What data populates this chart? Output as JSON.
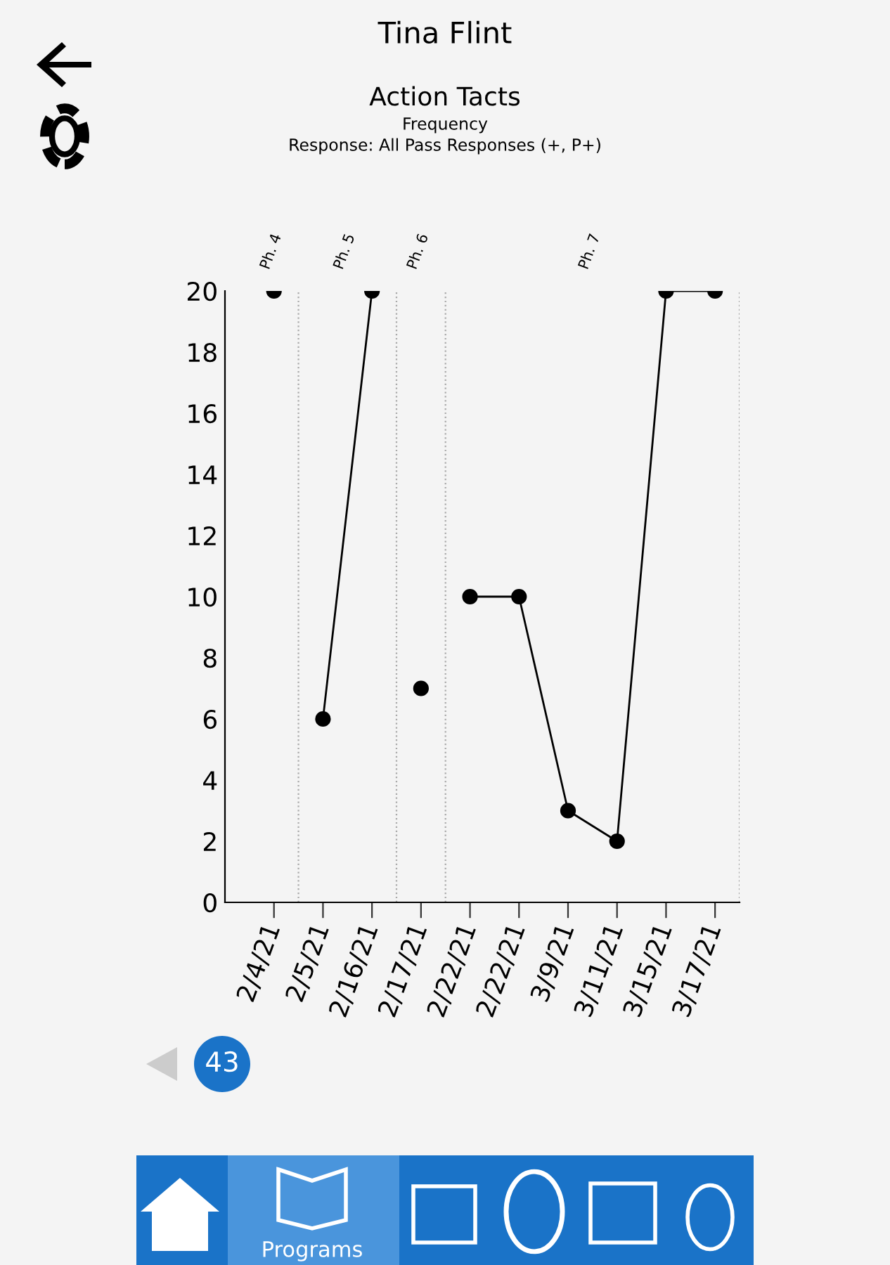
{
  "chart_data": {
    "type": "line",
    "title": "Tina Flint",
    "subtitle": "Action Tacts",
    "categories": [
      "2/4/21",
      "2/5/21",
      "2/16/21",
      "2/17/21",
      "2/22/21",
      "2/22/21",
      "3/9/21",
      "3/11/21",
      "3/15/21",
      "3/17/21"
    ],
    "series": [
      {
        "color": "#000000",
        "values": [
          20,
          null,
          null,
          null,
          null,
          null,
          null,
          null,
          null,
          null
        ]
      },
      {
        "color": "#000000",
        "values": [
          null,
          6,
          20,
          null,
          null,
          null,
          null,
          null,
          null,
          null
        ]
      },
      {
        "color": "#000000",
        "values": [
          null,
          null,
          null,
          7,
          null,
          null,
          null,
          null,
          null,
          null
        ]
      },
      {
        "color": "#000000",
        "values": [
          null,
          null,
          null,
          null,
          10,
          10,
          3,
          2,
          20,
          20
        ]
      }
    ],
    "ylim": [
      0,
      20
    ],
    "yticks": [
      0,
      2,
      4,
      6,
      8,
      10,
      12,
      14,
      16,
      18,
      20
    ],
    "annotations": [
      "Frequency",
      "Response: All Pass Responses (+, P+)",
      "Ph. 4",
      "Ph. 5",
      "Ph. 6",
      "Ph. 7",
      "43",
      "Programs"
    ],
    "grid": false,
    "legend": false,
    "marker": "circle",
    "line_style": "solid"
  }
}
